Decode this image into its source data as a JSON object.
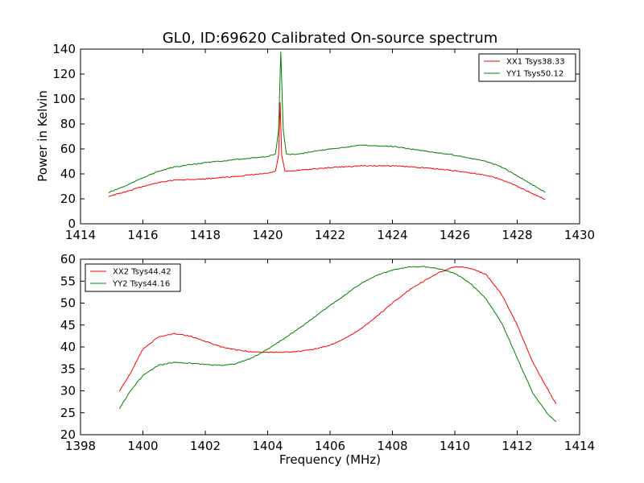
{
  "chart_data": [
    {
      "type": "line",
      "title": "GL0, ID:69620 Calibrated On-source spectrum",
      "xlabel": "",
      "ylabel": "Power in Kelvin",
      "xlim": [
        1414,
        1430
      ],
      "ylim": [
        0,
        140
      ],
      "xticks": [
        1414,
        1416,
        1418,
        1420,
        1422,
        1424,
        1426,
        1428,
        1430
      ],
      "yticks": [
        0,
        20,
        40,
        60,
        80,
        100,
        120,
        140
      ],
      "legend_position": "top-right",
      "series": [
        {
          "name": "XX1 Tsys38.33",
          "color": "#ff0000",
          "x": [
            1414.9,
            1415.5,
            1416,
            1416.5,
            1417,
            1418,
            1419,
            1420,
            1420.25,
            1420.35,
            1420.4,
            1420.45,
            1420.55,
            1420.65,
            1421,
            1422,
            1423,
            1424,
            1425,
            1426,
            1427,
            1427.5,
            1428,
            1428.5,
            1428.9
          ],
          "y": [
            22,
            26,
            30,
            33,
            35,
            36,
            38,
            40.5,
            42,
            55,
            97,
            55,
            42.5,
            42,
            43,
            45,
            46.5,
            46.5,
            45,
            42.5,
            39,
            35.5,
            30,
            24,
            19.5
          ]
        },
        {
          "name": "YY1 Tsys50.12",
          "color": "#008000",
          "x": [
            1414.9,
            1415.5,
            1416,
            1416.5,
            1417,
            1418,
            1419,
            1420,
            1420.25,
            1420.35,
            1420.42,
            1420.5,
            1420.6,
            1420.7,
            1421,
            1422,
            1423,
            1424,
            1425,
            1426,
            1427,
            1427.5,
            1428,
            1428.5,
            1428.9
          ],
          "y": [
            25,
            31,
            37,
            42,
            45.5,
            49,
            51.5,
            54,
            56,
            75,
            138,
            75,
            56,
            55.5,
            56,
            60,
            63,
            62,
            58.5,
            55,
            50,
            45.5,
            38.5,
            31,
            25.5
          ]
        }
      ]
    },
    {
      "type": "line",
      "title": "",
      "xlabel": "Frequency (MHz)",
      "ylabel": "",
      "xlim": [
        1398,
        1414
      ],
      "ylim": [
        20,
        60
      ],
      "xticks": [
        1398,
        1400,
        1402,
        1404,
        1406,
        1408,
        1410,
        1412,
        1414
      ],
      "yticks": [
        20,
        25,
        30,
        35,
        40,
        45,
        50,
        55,
        60
      ],
      "legend_position": "top-left",
      "series": [
        {
          "name": "XX2 Tsys44.42",
          "color": "#ff0000",
          "x": [
            1399.25,
            1399.6,
            1400,
            1400.5,
            1401,
            1401.5,
            1402,
            1402.5,
            1403,
            1403.5,
            1404,
            1404.5,
            1405,
            1405.5,
            1406,
            1406.5,
            1407,
            1407.5,
            1408,
            1408.5,
            1409,
            1409.5,
            1410,
            1410.5,
            1411,
            1411.5,
            1412,
            1412.5,
            1413,
            1413.25
          ],
          "y": [
            30,
            34,
            39.5,
            42.3,
            43,
            42.5,
            41.3,
            40,
            39.3,
            38.9,
            38.8,
            38.8,
            39,
            39.5,
            40.4,
            42,
            44.2,
            47,
            50,
            52.8,
            55,
            57,
            58.3,
            58,
            56.5,
            52,
            45,
            36.5,
            30,
            27
          ]
        },
        {
          "name": "YY2 Tsys44.16",
          "color": "#008000",
          "x": [
            1399.25,
            1399.6,
            1400,
            1400.5,
            1401,
            1401.5,
            1402,
            1402.5,
            1403,
            1403.5,
            1404,
            1404.5,
            1405,
            1405.5,
            1406,
            1406.5,
            1407,
            1407.5,
            1408,
            1408.5,
            1409,
            1409.5,
            1410,
            1410.5,
            1411,
            1411.5,
            1412,
            1412.5,
            1413,
            1413.25
          ],
          "y": [
            26,
            30,
            33.5,
            35.8,
            36.5,
            36.3,
            36,
            35.8,
            36.2,
            37.5,
            39.5,
            41.8,
            44.2,
            46.8,
            49.5,
            52,
            54.5,
            56.3,
            57.5,
            58.2,
            58.3,
            57.8,
            56.8,
            54.5,
            51,
            45.5,
            37.5,
            29.5,
            24.5,
            23
          ]
        }
      ]
    }
  ]
}
